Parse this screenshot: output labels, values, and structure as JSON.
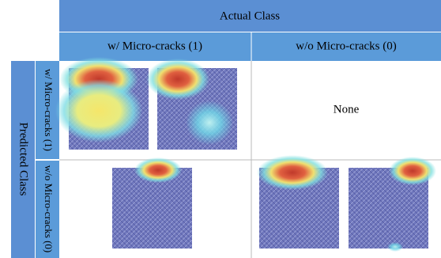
{
  "header": {
    "title": "Actual Class",
    "columns": [
      "w/ Micro-cracks (1)",
      "w/o Micro-cracks (0)"
    ]
  },
  "side": {
    "title": "Predicted Class",
    "rows": [
      "w/ Micro-cracks (1)",
      "w/o Micro-cracks (0)"
    ]
  },
  "cells": {
    "empty": "None"
  }
}
